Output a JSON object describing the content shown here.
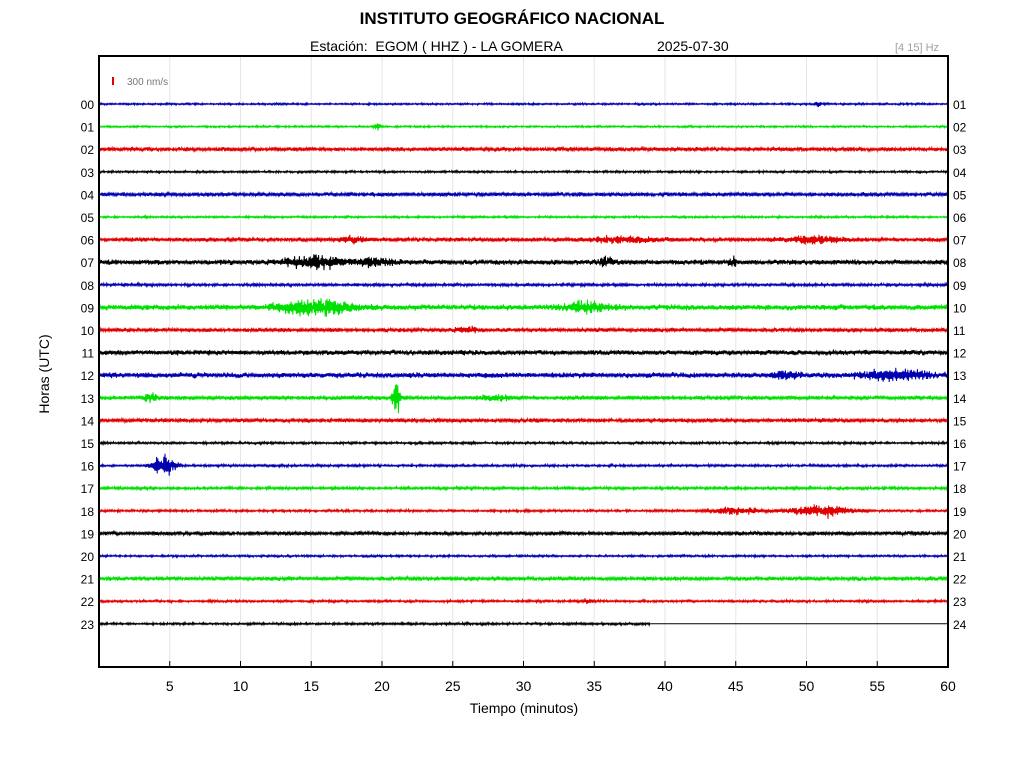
{
  "header": {
    "title": "INSTITUTO GEOGRÁFICO NACIONAL",
    "station": "Estación:  EGOM ( HHZ ) - LA GOMERA",
    "date": "2025-07-30",
    "band": "[4 15] Hz",
    "scale": "300 nm/s"
  },
  "chart_data": {
    "type": "line",
    "title": "INSTITUTO GEOGRÁFICO NACIONAL",
    "xlabel": "Tiempo (minutos)",
    "ylabel": "Horas (UTC)",
    "xlim": [
      0,
      60
    ],
    "x_ticks": [
      5,
      10,
      15,
      20,
      25,
      30,
      35,
      40,
      45,
      50,
      55,
      60
    ],
    "left_hour_labels": [
      "00",
      "01",
      "02",
      "03",
      "04",
      "05",
      "06",
      "07",
      "08",
      "09",
      "10",
      "11",
      "12",
      "13",
      "14",
      "15",
      "16",
      "17",
      "18",
      "19",
      "20",
      "21",
      "22",
      "23"
    ],
    "right_hour_labels": [
      "01",
      "02",
      "03",
      "04",
      "05",
      "06",
      "07",
      "08",
      "09",
      "10",
      "11",
      "12",
      "13",
      "14",
      "15",
      "16",
      "17",
      "18",
      "19",
      "20",
      "21",
      "22",
      "23",
      "24"
    ],
    "grid": true,
    "color_cycle": [
      "#0000b0",
      "#00e000",
      "#e00000",
      "#000000"
    ],
    "series": [
      {
        "hour": 0,
        "noise": 0.8,
        "events": [
          {
            "t": 50.8,
            "amp": 3,
            "dur": 0.2
          }
        ]
      },
      {
        "hour": 1,
        "noise": 0.8,
        "events": [
          {
            "t": 19.7,
            "amp": 5,
            "dur": 0.3
          }
        ]
      },
      {
        "hour": 2,
        "noise": 1.6,
        "events": []
      },
      {
        "hour": 3,
        "noise": 0.9,
        "events": []
      },
      {
        "hour": 4,
        "noise": 1.6,
        "events": []
      },
      {
        "hour": 5,
        "noise": 0.9,
        "events": []
      },
      {
        "hour": 6,
        "noise": 1.6,
        "events": [
          {
            "t": 18.0,
            "amp": 3,
            "dur": 1.0
          },
          {
            "t": 37.0,
            "amp": 3,
            "dur": 3
          },
          {
            "t": 50.5,
            "amp": 4,
            "dur": 2.5
          }
        ]
      },
      {
        "hour": 7,
        "noise": 2.0,
        "events": [
          {
            "t": 15.2,
            "amp": 7,
            "dur": 2.5
          },
          {
            "t": 19.5,
            "amp": 4,
            "dur": 1.5
          },
          {
            "t": 35.8,
            "amp": 5,
            "dur": 0.6
          },
          {
            "t": 44.8,
            "amp": 5,
            "dur": 0.3
          }
        ]
      },
      {
        "hour": 8,
        "noise": 1.2,
        "events": []
      },
      {
        "hour": 9,
        "noise": 2.2,
        "events": [
          {
            "t": 15.3,
            "amp": 9,
            "dur": 3
          },
          {
            "t": 34.5,
            "amp": 6,
            "dur": 2
          }
        ]
      },
      {
        "hour": 10,
        "noise": 1.6,
        "events": [
          {
            "t": 26.0,
            "amp": 3,
            "dur": 1
          }
        ]
      },
      {
        "hour": 11,
        "noise": 2.0,
        "events": []
      },
      {
        "hour": 12,
        "noise": 2.2,
        "events": [
          {
            "t": 48.5,
            "amp": 4,
            "dur": 1
          },
          {
            "t": 56.3,
            "amp": 5,
            "dur": 3
          }
        ]
      },
      {
        "hour": 13,
        "noise": 1.6,
        "events": [
          {
            "t": 3.6,
            "amp": 4,
            "dur": 0.6
          },
          {
            "t": 21.0,
            "amp": 22,
            "dur": 0.3
          },
          {
            "t": 28.0,
            "amp": 3,
            "dur": 1.5
          }
        ]
      },
      {
        "hour": 14,
        "noise": 1.6,
        "events": []
      },
      {
        "hour": 15,
        "noise": 1.0,
        "events": []
      },
      {
        "hour": 16,
        "noise": 1.0,
        "events": [
          {
            "t": 4.6,
            "amp": 12,
            "dur": 0.9
          }
        ]
      },
      {
        "hour": 17,
        "noise": 1.2,
        "events": []
      },
      {
        "hour": 18,
        "noise": 1.0,
        "events": [
          {
            "t": 45.0,
            "amp": 4,
            "dur": 2
          },
          {
            "t": 51.0,
            "amp": 6,
            "dur": 2.5
          }
        ]
      },
      {
        "hour": 19,
        "noise": 1.6,
        "events": []
      },
      {
        "hour": 20,
        "noise": 0.9,
        "events": []
      },
      {
        "hour": 21,
        "noise": 1.6,
        "events": []
      },
      {
        "hour": 22,
        "noise": 1.0,
        "events": [
          {
            "t": 34.5,
            "amp": 3,
            "dur": 0.4
          }
        ]
      },
      {
        "hour": 23,
        "noise": 1.0,
        "events": [],
        "end_minute": 39
      }
    ]
  }
}
